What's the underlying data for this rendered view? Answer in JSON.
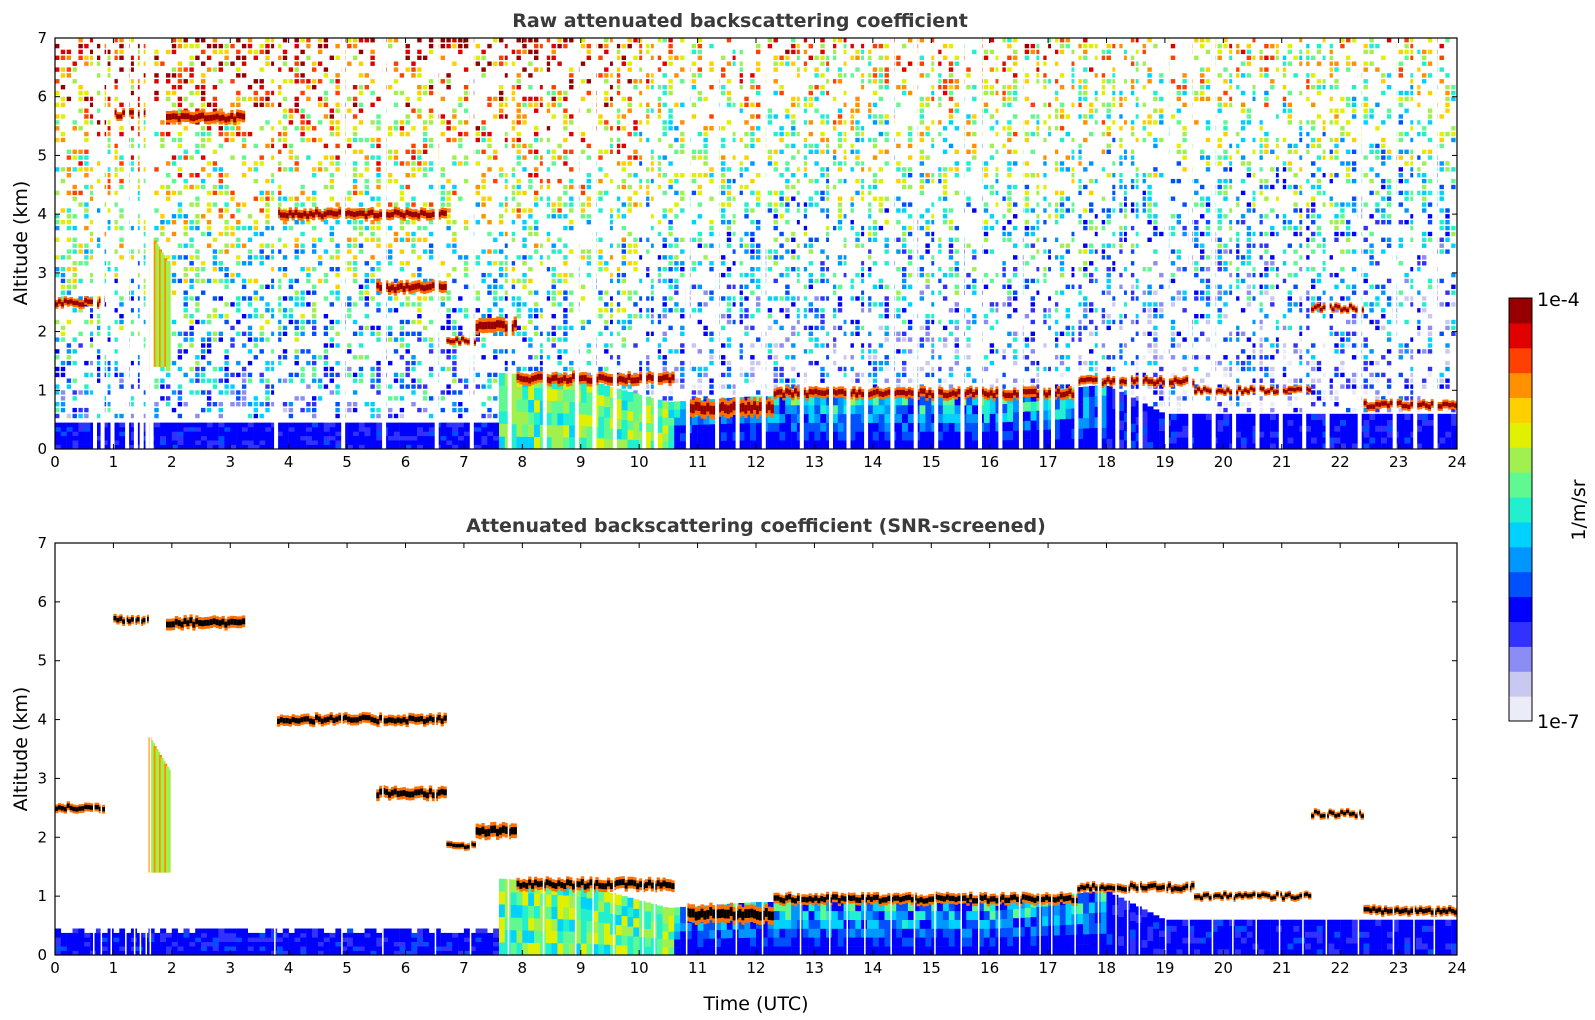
{
  "colors": {
    "colormap": [
      "#ececf8",
      "#c8c8f0",
      "#8c8cf5",
      "#3232ff",
      "#0000ff",
      "#0050ff",
      "#0096ff",
      "#00d2ff",
      "#20f0d0",
      "#60f890",
      "#a0f050",
      "#e0f000",
      "#ffd000",
      "#ff9000",
      "#ff4000",
      "#e00000",
      "#960000"
    ],
    "background": "#ffffff",
    "screened_cloud_core": "#000000"
  },
  "chart_data": [
    {
      "type": "heatmap",
      "panel": "raw",
      "title": "Raw attenuated backscattering coefficient",
      "xlabel": "",
      "ylabel": "Altitude (km)",
      "xlim": [
        0,
        24
      ],
      "ylim": [
        0,
        7
      ],
      "x_ticks": [
        "0",
        "1",
        "2",
        "3",
        "4",
        "5",
        "6",
        "7",
        "8",
        "9",
        "10",
        "11",
        "12",
        "13",
        "14",
        "15",
        "16",
        "17",
        "18",
        "19",
        "20",
        "21",
        "22",
        "23",
        "24"
      ],
      "y_ticks": [
        "0",
        "1",
        "2",
        "3",
        "4",
        "5",
        "6",
        "7"
      ],
      "noise_background": "random speckle increasing in intensity with altitude",
      "boundary_layer_top_km": [
        [
          0,
          0.45
        ],
        [
          7.6,
          0.45
        ],
        [
          7.6,
          1.3
        ],
        [
          9.0,
          1.2
        ],
        [
          10.5,
          0.8
        ],
        [
          12.0,
          0.9
        ],
        [
          14.0,
          0.9
        ],
        [
          16.0,
          0.9
        ],
        [
          18.0,
          1.1
        ],
        [
          19.0,
          0.6
        ],
        [
          21.6,
          0.6
        ],
        [
          24,
          0.6
        ]
      ],
      "cloud_layers": [
        {
          "t0": 0.0,
          "t1": 0.85,
          "alt_km": 2.5,
          "thickness_km": 0.15
        },
        {
          "t0": 1.0,
          "t1": 1.6,
          "alt_km": 5.7,
          "thickness_km": 0.15
        },
        {
          "t0": 1.9,
          "t1": 3.25,
          "alt_km": 5.65,
          "thickness_km": 0.2
        },
        {
          "t0": 3.8,
          "t1": 6.7,
          "alt_km": 4.0,
          "thickness_km": 0.18
        },
        {
          "t0": 5.5,
          "t1": 6.7,
          "alt_km": 2.75,
          "thickness_km": 0.2
        },
        {
          "t0": 6.7,
          "t1": 7.2,
          "alt_km": 1.85,
          "thickness_km": 0.12
        },
        {
          "t0": 7.2,
          "t1": 7.9,
          "alt_km": 2.1,
          "thickness_km": 0.25
        },
        {
          "t0": 7.9,
          "t1": 10.6,
          "alt_km": 1.2,
          "thickness_km": 0.2
        },
        {
          "t0": 10.8,
          "t1": 12.3,
          "alt_km": 0.7,
          "thickness_km": 0.3
        },
        {
          "t0": 12.3,
          "t1": 17.5,
          "alt_km": 0.95,
          "thickness_km": 0.18
        },
        {
          "t0": 17.5,
          "t1": 19.5,
          "alt_km": 1.15,
          "thickness_km": 0.15
        },
        {
          "t0": 19.5,
          "t1": 21.5,
          "alt_km": 1.0,
          "thickness_km": 0.12
        },
        {
          "t0": 21.5,
          "t1": 22.4,
          "alt_km": 2.4,
          "thickness_km": 0.12
        },
        {
          "t0": 22.4,
          "t1": 24.0,
          "alt_km": 0.75,
          "thickness_km": 0.15
        }
      ],
      "missing_profile_times": [
        0.65,
        0.78,
        0.95,
        1.2,
        1.35,
        1.45,
        1.55,
        1.62,
        3.75,
        4.9,
        5.6,
        6.5,
        7.1,
        7.75,
        8.35,
        8.9,
        9.2,
        9.55,
        10.05,
        10.25,
        10.8,
        11.3,
        11.65,
        12.1,
        12.75,
        13.25,
        13.55,
        13.85,
        14.3,
        14.7,
        15.05,
        15.5,
        15.8,
        16.15,
        16.5,
        16.85,
        17.05,
        17.45,
        17.85,
        18.15,
        18.35,
        18.55,
        19.0,
        19.4,
        19.8,
        20.15,
        20.55,
        20.95,
        21.35,
        21.75,
        22.3,
        22.9,
        23.25,
        23.6
      ]
    },
    {
      "type": "heatmap",
      "panel": "screened",
      "title": "Attenuated backscattering coefficient (SNR-screened)",
      "xlabel": "Time (UTC)",
      "ylabel": "Altitude (km)",
      "xlim": [
        0,
        24
      ],
      "ylim": [
        0,
        7
      ],
      "x_ticks": [
        "0",
        "1",
        "2",
        "3",
        "4",
        "5",
        "6",
        "7",
        "8",
        "9",
        "10",
        "11",
        "12",
        "13",
        "14",
        "15",
        "16",
        "17",
        "18",
        "19",
        "20",
        "21",
        "22",
        "23",
        "24"
      ],
      "y_ticks": [
        "0",
        "1",
        "2",
        "3",
        "4",
        "5",
        "6",
        "7"
      ],
      "note": "same as raw panel with low-SNR noise removed; saturated cloud cores shown in black"
    }
  ],
  "colorbar": {
    "label": "1/m/sr",
    "max_label": "1e-4",
    "min_label": "1e-7",
    "scale": "log"
  }
}
